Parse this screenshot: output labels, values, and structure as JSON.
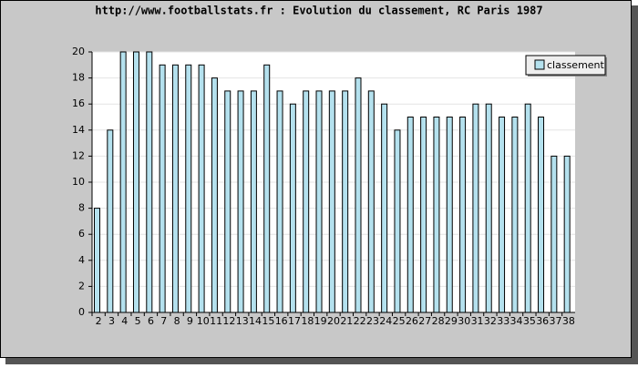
{
  "chart_data": {
    "type": "bar",
    "title": "http://www.footballstats.fr : Evolution du classement, RC Paris 1987",
    "categories": [
      2,
      3,
      4,
      5,
      6,
      7,
      8,
      9,
      10,
      11,
      12,
      13,
      14,
      15,
      16,
      17,
      18,
      19,
      20,
      21,
      22,
      23,
      24,
      25,
      26,
      27,
      28,
      29,
      30,
      31,
      32,
      33,
      34,
      35,
      36,
      37,
      38
    ],
    "series": [
      {
        "name": "classement",
        "color": "#b4e1ee",
        "values": [
          8,
          14,
          20,
          20,
          20,
          19,
          19,
          19,
          19,
          18,
          17,
          17,
          17,
          19,
          17,
          16,
          17,
          17,
          17,
          17,
          18,
          17,
          16,
          14,
          15,
          15,
          15,
          15,
          15,
          16,
          16,
          15,
          15,
          16,
          15,
          12,
          12
        ]
      }
    ],
    "ylim": [
      0,
      20
    ],
    "yticks": [
      0,
      2,
      4,
      6,
      8,
      10,
      12,
      14,
      16,
      18,
      20
    ],
    "grid": true,
    "legend": "top-right"
  }
}
